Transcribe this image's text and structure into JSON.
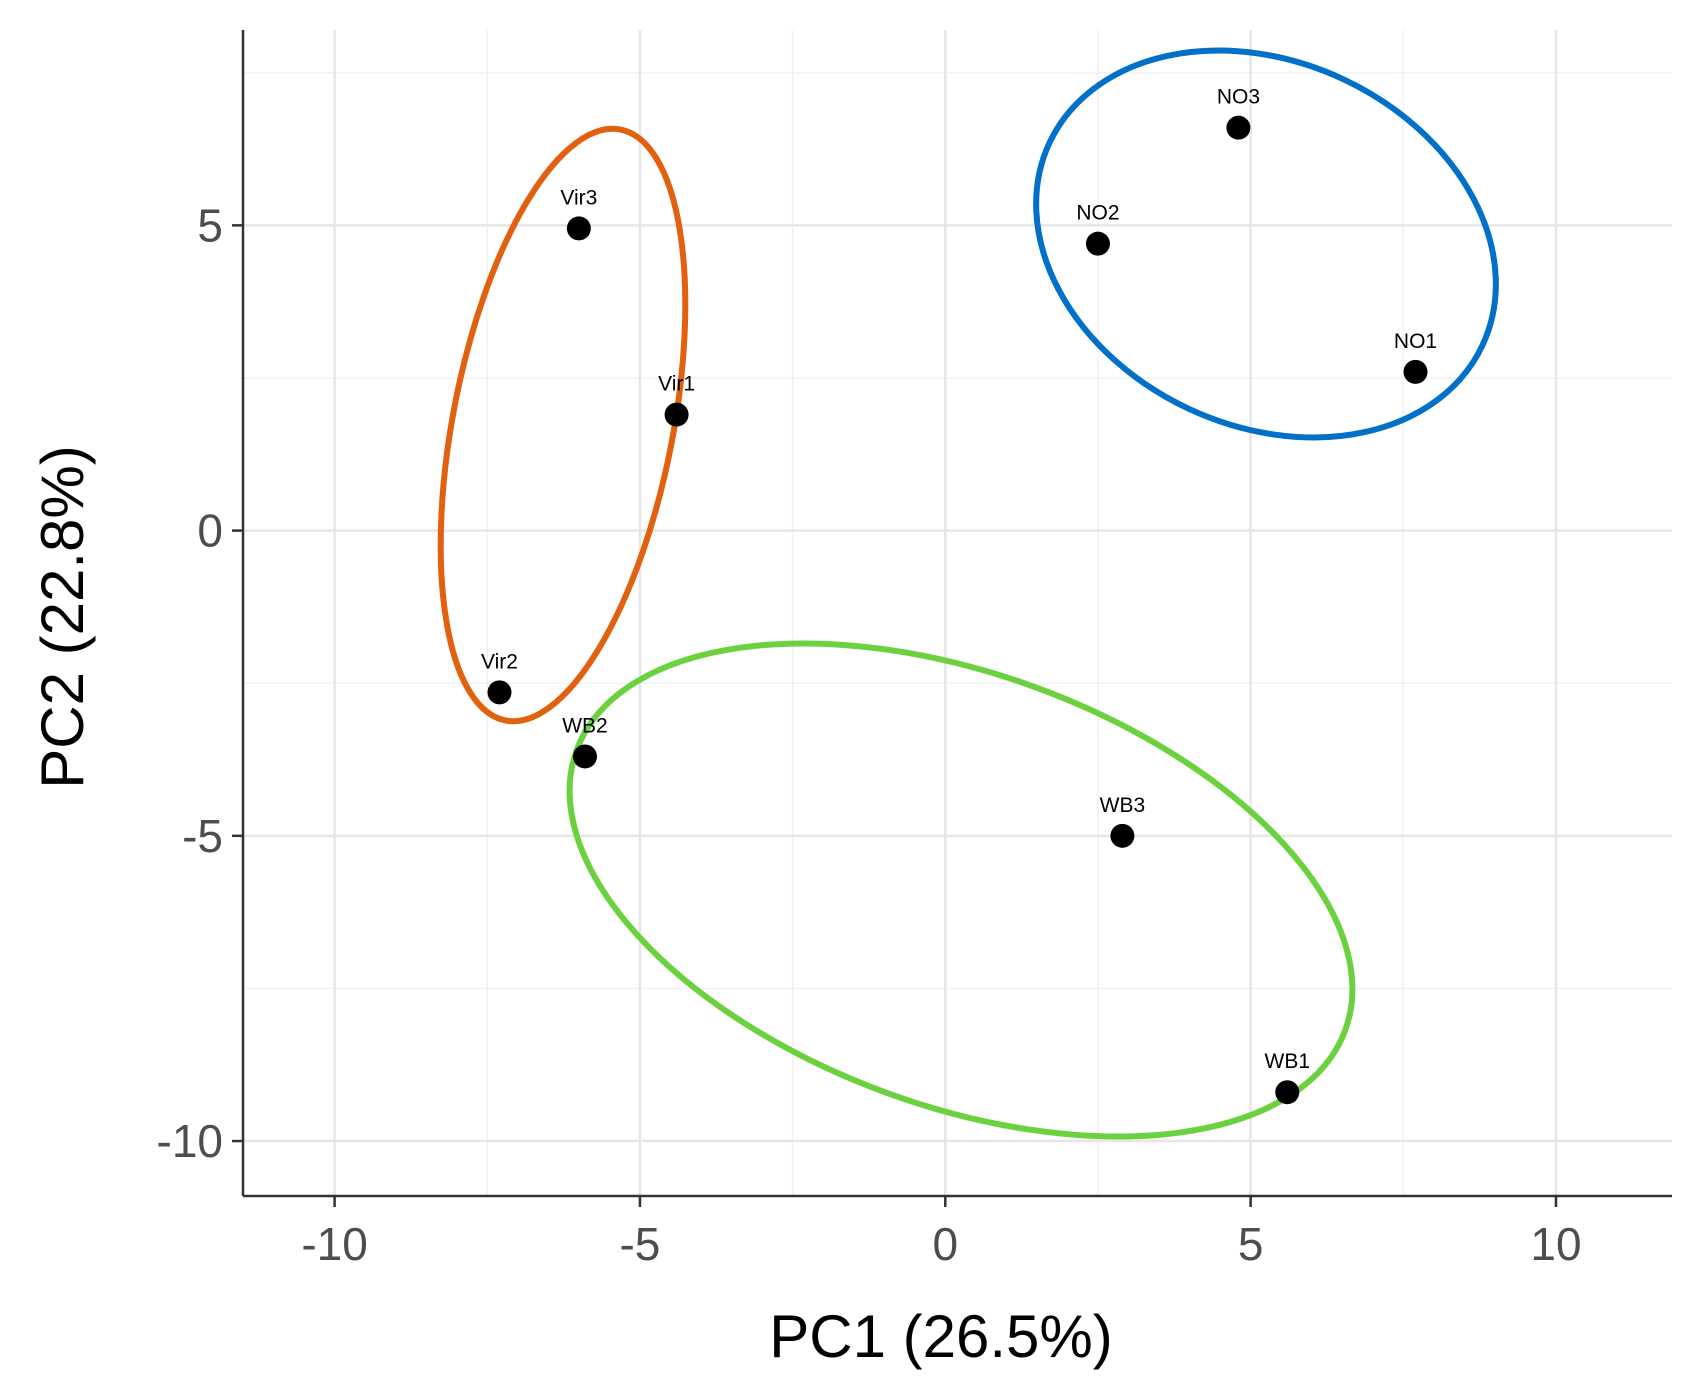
{
  "chart_data": {
    "type": "scatter",
    "title": "",
    "xlabel": "PC1 (26.5%)",
    "ylabel": "PC2 (22.8%)",
    "xlim": [
      -11.5,
      11.9
    ],
    "ylim": [
      -10.9,
      8.2
    ],
    "x_ticks": [
      -10,
      -5,
      0,
      5,
      10
    ],
    "y_ticks": [
      -10,
      -5,
      0,
      5
    ],
    "x_tick_labels": [
      "-10",
      "-5",
      "0",
      "5",
      "10"
    ],
    "y_tick_labels": [
      "-10",
      "-5",
      "0",
      "5"
    ],
    "grid": true,
    "points": [
      {
        "label": "Vir1",
        "x": -4.4,
        "y": 1.9,
        "group": "Vir"
      },
      {
        "label": "Vir2",
        "x": -7.3,
        "y": -2.65,
        "group": "Vir"
      },
      {
        "label": "Vir3",
        "x": -6.0,
        "y": 4.95,
        "group": "Vir"
      },
      {
        "label": "WB1",
        "x": 5.6,
        "y": -9.2,
        "group": "WB"
      },
      {
        "label": "WB2",
        "x": -5.9,
        "y": -3.7,
        "group": "WB"
      },
      {
        "label": "WB3",
        "x": 2.9,
        "y": -5.0,
        "group": "WB"
      },
      {
        "label": "NO1",
        "x": 7.7,
        "y": 2.6,
        "group": "NO"
      },
      {
        "label": "NO2",
        "x": 2.5,
        "y": 4.7,
        "group": "NO"
      },
      {
        "label": "NO3",
        "x": 4.8,
        "y": 6.6,
        "group": "NO"
      }
    ],
    "groups": [
      {
        "name": "Vir",
        "color": "#e1610f"
      },
      {
        "name": "WB",
        "color": "#6cd13f"
      },
      {
        "name": "NO",
        "color": "#0070c8"
      }
    ],
    "point_color": "#000000"
  }
}
